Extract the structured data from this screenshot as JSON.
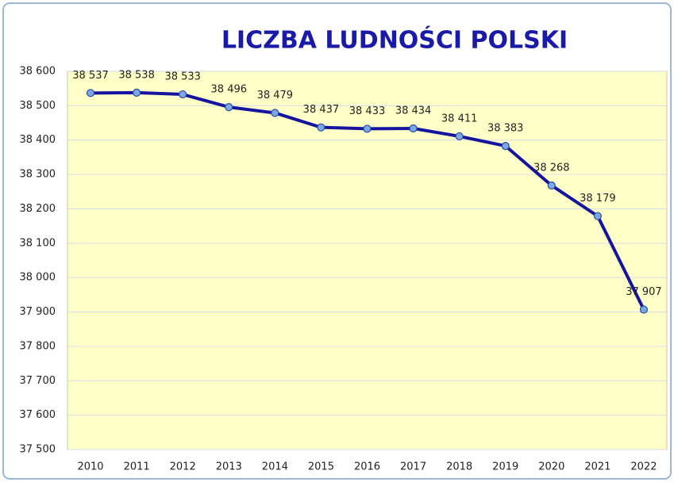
{
  "chart_data": {
    "type": "line",
    "title": "LICZBA LUDNOŚCI POLSKI",
    "categories": [
      "2010",
      "2011",
      "2012",
      "2013",
      "2014",
      "2015",
      "2016",
      "2017",
      "2018",
      "2019",
      "2020",
      "2021",
      "2022"
    ],
    "values": [
      38537,
      38538,
      38533,
      38496,
      38479,
      38437,
      38433,
      38434,
      38411,
      38383,
      38268,
      38179,
      37907
    ],
    "value_labels": [
      "38 537",
      "38 538",
      "38 533",
      "38 496",
      "38 479",
      "38 437",
      "38 433",
      "38 434",
      "38 411",
      "38 383",
      "38 268",
      "38 179",
      "37 907"
    ],
    "color": "#1414a0",
    "ylim": [
      37500,
      38600
    ],
    "yticks": [
      {
        "value": 37500,
        "label": "37 500"
      },
      {
        "value": 37600,
        "label": "37 600"
      },
      {
        "value": 37700,
        "label": "37 700"
      },
      {
        "value": 37800,
        "label": "37 800"
      },
      {
        "value": 37900,
        "label": "37 900"
      },
      {
        "value": 38000,
        "label": "38 000"
      },
      {
        "value": 38100,
        "label": "38 100"
      },
      {
        "value": 38200,
        "label": "38 200"
      },
      {
        "value": 38300,
        "label": "38 300"
      },
      {
        "value": 38400,
        "label": "38 400"
      },
      {
        "value": 38500,
        "label": "38 500"
      },
      {
        "value": 38600,
        "label": "38 600"
      }
    ],
    "grid": true
  }
}
